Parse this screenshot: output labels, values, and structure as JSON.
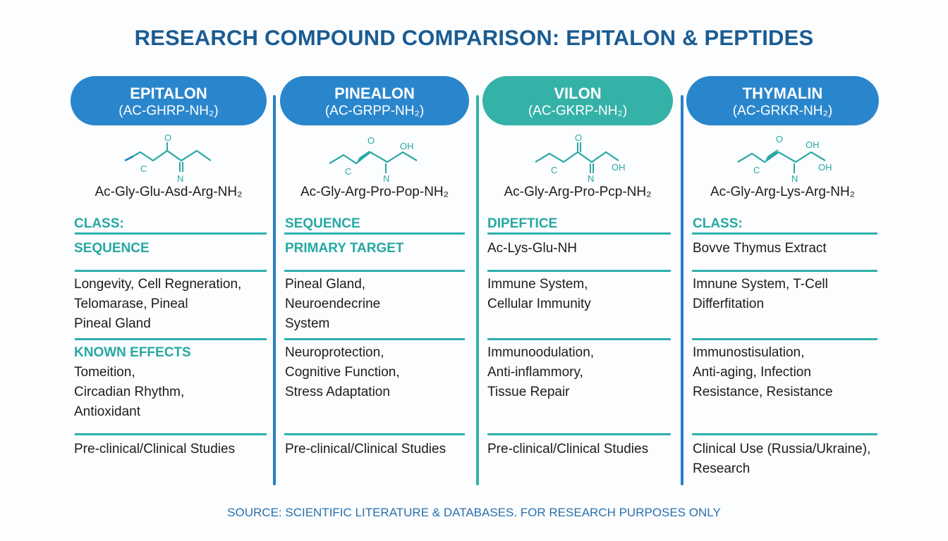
{
  "title": "RESEARCH COMPOUND COMPARISON: EPITALON & PEPTIDES",
  "footer": "SOURCE: SCIENTIFIC LITERATURE & DATABASES. FOR RESEARCH PURPOSES ONLY",
  "colors": {
    "title": "#1b5c92",
    "pill_blue": "#2a86cc",
    "pill_teal": "#35b2a8",
    "label_teal": "#27a8a2",
    "divider_blue": "#2a7fc4",
    "divider_teal": "#35b2a8"
  },
  "columns": [
    {
      "name": "EPITALON",
      "formula": "(AC-GHRP-NH₂)",
      "pill_color": "#2a86cc",
      "molecule": {
        "o": "O",
        "c": "C",
        "n": "N",
        "oh": ""
      },
      "sequence": "Ac-Gly-Glu-Asd-Arg-NH₂",
      "cells": [
        [
          {
            "kind": "label",
            "text": "CLASS:"
          }
        ],
        [
          {
            "kind": "label",
            "text": "SEQUENCE"
          }
        ],
        [
          {
            "kind": "text",
            "text": "Longevity, Cell Regneration,"
          },
          {
            "kind": "text",
            "text": "Telomarase, Pineal"
          },
          {
            "kind": "text",
            "text": "Pineal Gland"
          }
        ],
        [
          {
            "kind": "label",
            "text": "KNOWN EFFECTS"
          },
          {
            "kind": "text",
            "text": "Tomeition,"
          },
          {
            "kind": "text",
            "text": "Circadian Rhythm,"
          },
          {
            "kind": "text",
            "text": "Antioxidant"
          }
        ],
        [
          {
            "kind": "text",
            "text": "Pre-clinical/Clinical Studies"
          }
        ]
      ]
    },
    {
      "name": "PINEALON",
      "formula": "(AC-GRPP-NH₂)",
      "pill_color": "#2a86cc",
      "molecule": {
        "o": "O",
        "c": "C",
        "n": "N",
        "oh": "OH"
      },
      "sequence": "Ac-Gly-Arg-Pro-Pop-NH₂",
      "cells": [
        [
          {
            "kind": "label",
            "text": "SEQUENCE"
          }
        ],
        [
          {
            "kind": "label",
            "text": "PRIMARY TARGET"
          }
        ],
        [
          {
            "kind": "text",
            "text": "Pineal Gland,"
          },
          {
            "kind": "text",
            "text": "Neuroendecrine"
          },
          {
            "kind": "text",
            "text": "System"
          }
        ],
        [
          {
            "kind": "text",
            "text": "Neuroprotection,"
          },
          {
            "kind": "text",
            "text": "Cognitive Function,"
          },
          {
            "kind": "text",
            "text": "Stress Adaptation"
          }
        ],
        [
          {
            "kind": "text",
            "text": "Pre-clinical/Clinical Studies"
          }
        ]
      ]
    },
    {
      "name": "VILON",
      "formula": "(AC-GKRP-NH₂)",
      "pill_color": "#35b2a8",
      "molecule": {
        "o": "O",
        "c": "C",
        "n": "N",
        "oh": "OH"
      },
      "sequence": "Ac-Gly-Arg-Pro-Pcp-NH₂",
      "cells": [
        [
          {
            "kind": "label",
            "text": "DIPEFTICE"
          }
        ],
        [
          {
            "kind": "text",
            "text": "Ac-Lys-Glu-NH"
          }
        ],
        [
          {
            "kind": "text",
            "text": "Immune System,"
          },
          {
            "kind": "text",
            "text": "Cellular Immunity"
          }
        ],
        [
          {
            "kind": "text",
            "text": "Immunoodulation,"
          },
          {
            "kind": "text",
            "text": "Anti-inflammory,"
          },
          {
            "kind": "text",
            "text": "Tissue Repair"
          }
        ],
        [
          {
            "kind": "text",
            "text": "Pre-clinical/Clinical Studies"
          }
        ]
      ]
    },
    {
      "name": "THYMALIN",
      "formula": "(AC-GRKR-NH₂)",
      "pill_color": "#2a86cc",
      "molecule": {
        "o": "O",
        "c": "C",
        "n": "N",
        "oh": "OH",
        "oh2": "OH"
      },
      "sequence": "Ac-Gly-Arg-Lys-Arg-NH₂",
      "cells": [
        [
          {
            "kind": "label",
            "text": "CLASS:"
          }
        ],
        [
          {
            "kind": "text",
            "text": "Bovve Thymus Extract"
          }
        ],
        [
          {
            "kind": "text",
            "text": "Imnune System, T-Cell"
          },
          {
            "kind": "text",
            "text": "Differfitation"
          }
        ],
        [
          {
            "kind": "text",
            "text": "Immunostisulation,"
          },
          {
            "kind": "text",
            "text": "Anti-aging, Infection"
          },
          {
            "kind": "text",
            "text": "Resistance, Resistance"
          }
        ],
        [
          {
            "kind": "text",
            "text": "Clinical Use (Russia/Ukraine),"
          },
          {
            "kind": "text",
            "text": "Research"
          }
        ]
      ]
    }
  ]
}
